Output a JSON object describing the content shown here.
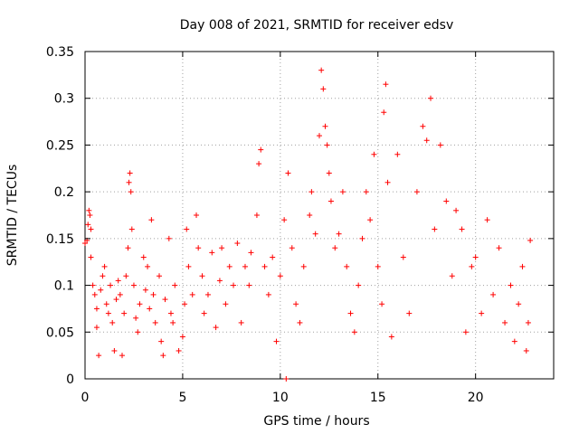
{
  "chart_data": {
    "type": "scatter",
    "title": "Day 008 of 2021, SRMTID for receiver edsv",
    "xlabel": "GPS time / hours",
    "ylabel": "SRMTID / TECUs",
    "xlim": [
      0,
      24
    ],
    "ylim": [
      0,
      0.35
    ],
    "x_ticks": [
      0,
      5,
      10,
      15,
      20
    ],
    "x_tick_labels": [
      "0",
      "5",
      "10",
      "15",
      "20"
    ],
    "y_ticks": [
      0,
      0.05,
      0.1,
      0.15,
      0.2,
      0.25,
      0.3,
      0.35
    ],
    "y_tick_labels": [
      "0",
      "0.05",
      "0.1",
      "0.15",
      "0.2",
      "0.25",
      "0.3",
      "0.35"
    ],
    "grid": true,
    "marker": "+",
    "color": "#ff0000",
    "series": [
      {
        "name": "SRMTID",
        "points": [
          [
            0.0,
            0.145
          ],
          [
            0.1,
            0.148
          ],
          [
            0.15,
            0.165
          ],
          [
            0.2,
            0.18
          ],
          [
            0.25,
            0.175
          ],
          [
            0.3,
            0.16
          ],
          [
            0.3,
            0.13
          ],
          [
            0.4,
            0.1
          ],
          [
            0.5,
            0.09
          ],
          [
            0.6,
            0.075
          ],
          [
            0.6,
            0.055
          ],
          [
            0.7,
            0.025
          ],
          [
            0.8,
            0.095
          ],
          [
            0.9,
            0.11
          ],
          [
            1.0,
            0.12
          ],
          [
            1.1,
            0.08
          ],
          [
            1.2,
            0.07
          ],
          [
            1.3,
            0.1
          ],
          [
            1.4,
            0.06
          ],
          [
            1.5,
            0.03
          ],
          [
            1.6,
            0.085
          ],
          [
            1.7,
            0.105
          ],
          [
            1.8,
            0.09
          ],
          [
            1.9,
            0.025
          ],
          [
            2.0,
            0.07
          ],
          [
            2.1,
            0.11
          ],
          [
            2.2,
            0.14
          ],
          [
            2.25,
            0.21
          ],
          [
            2.3,
            0.22
          ],
          [
            2.35,
            0.2
          ],
          [
            2.4,
            0.16
          ],
          [
            2.5,
            0.1
          ],
          [
            2.6,
            0.065
          ],
          [
            2.7,
            0.05
          ],
          [
            2.8,
            0.08
          ],
          [
            3.0,
            0.13
          ],
          [
            3.1,
            0.095
          ],
          [
            3.2,
            0.12
          ],
          [
            3.3,
            0.075
          ],
          [
            3.4,
            0.17
          ],
          [
            3.5,
            0.09
          ],
          [
            3.6,
            0.06
          ],
          [
            3.8,
            0.11
          ],
          [
            3.9,
            0.04
          ],
          [
            4.0,
            0.025
          ],
          [
            4.1,
            0.085
          ],
          [
            4.3,
            0.15
          ],
          [
            4.4,
            0.07
          ],
          [
            4.5,
            0.06
          ],
          [
            4.6,
            0.1
          ],
          [
            4.8,
            0.03
          ],
          [
            5.0,
            0.045
          ],
          [
            5.1,
            0.08
          ],
          [
            5.2,
            0.16
          ],
          [
            5.3,
            0.12
          ],
          [
            5.5,
            0.09
          ],
          [
            5.7,
            0.175
          ],
          [
            5.8,
            0.14
          ],
          [
            6.0,
            0.11
          ],
          [
            6.1,
            0.07
          ],
          [
            6.3,
            0.09
          ],
          [
            6.5,
            0.135
          ],
          [
            6.7,
            0.055
          ],
          [
            6.9,
            0.105
          ],
          [
            7.0,
            0.14
          ],
          [
            7.2,
            0.08
          ],
          [
            7.4,
            0.12
          ],
          [
            7.6,
            0.1
          ],
          [
            7.8,
            0.145
          ],
          [
            8.0,
            0.06
          ],
          [
            8.2,
            0.12
          ],
          [
            8.4,
            0.1
          ],
          [
            8.5,
            0.135
          ],
          [
            8.8,
            0.175
          ],
          [
            8.9,
            0.23
          ],
          [
            9.0,
            0.245
          ],
          [
            9.2,
            0.12
          ],
          [
            9.4,
            0.09
          ],
          [
            9.6,
            0.13
          ],
          [
            9.8,
            0.04
          ],
          [
            10.0,
            0.11
          ],
          [
            10.2,
            0.17
          ],
          [
            10.4,
            0.22
          ],
          [
            10.6,
            0.14
          ],
          [
            10.8,
            0.08
          ],
          [
            11.0,
            0.06
          ],
          [
            11.2,
            0.12
          ],
          [
            11.5,
            0.175
          ],
          [
            11.6,
            0.2
          ],
          [
            11.8,
            0.155
          ],
          [
            12.0,
            0.26
          ],
          [
            12.1,
            0.33
          ],
          [
            12.2,
            0.31
          ],
          [
            12.3,
            0.27
          ],
          [
            12.4,
            0.25
          ],
          [
            12.5,
            0.22
          ],
          [
            12.6,
            0.19
          ],
          [
            12.8,
            0.14
          ],
          [
            13.0,
            0.155
          ],
          [
            13.2,
            0.2
          ],
          [
            13.4,
            0.12
          ],
          [
            13.6,
            0.07
          ],
          [
            13.8,
            0.05
          ],
          [
            14.0,
            0.1
          ],
          [
            14.2,
            0.15
          ],
          [
            14.4,
            0.2
          ],
          [
            14.6,
            0.17
          ],
          [
            14.8,
            0.24
          ],
          [
            15.0,
            0.12
          ],
          [
            15.2,
            0.08
          ],
          [
            15.3,
            0.285
          ],
          [
            15.4,
            0.315
          ],
          [
            15.5,
            0.21
          ],
          [
            15.7,
            0.045
          ],
          [
            16.0,
            0.24
          ],
          [
            16.3,
            0.13
          ],
          [
            16.6,
            0.07
          ],
          [
            17.0,
            0.2
          ],
          [
            17.3,
            0.27
          ],
          [
            17.5,
            0.255
          ],
          [
            17.7,
            0.3
          ],
          [
            17.9,
            0.16
          ],
          [
            18.2,
            0.25
          ],
          [
            18.5,
            0.19
          ],
          [
            18.8,
            0.11
          ],
          [
            19.0,
            0.18
          ],
          [
            19.3,
            0.16
          ],
          [
            19.5,
            0.05
          ],
          [
            19.8,
            0.12
          ],
          [
            20.0,
            0.13
          ],
          [
            20.3,
            0.07
          ],
          [
            20.6,
            0.17
          ],
          [
            20.9,
            0.09
          ],
          [
            21.2,
            0.14
          ],
          [
            21.5,
            0.06
          ],
          [
            21.8,
            0.1
          ],
          [
            22.0,
            0.04
          ],
          [
            22.2,
            0.08
          ],
          [
            22.4,
            0.12
          ],
          [
            22.6,
            0.03
          ],
          [
            22.7,
            0.06
          ],
          [
            22.8,
            0.148
          ],
          [
            10.3,
            0.0
          ]
        ]
      }
    ]
  }
}
